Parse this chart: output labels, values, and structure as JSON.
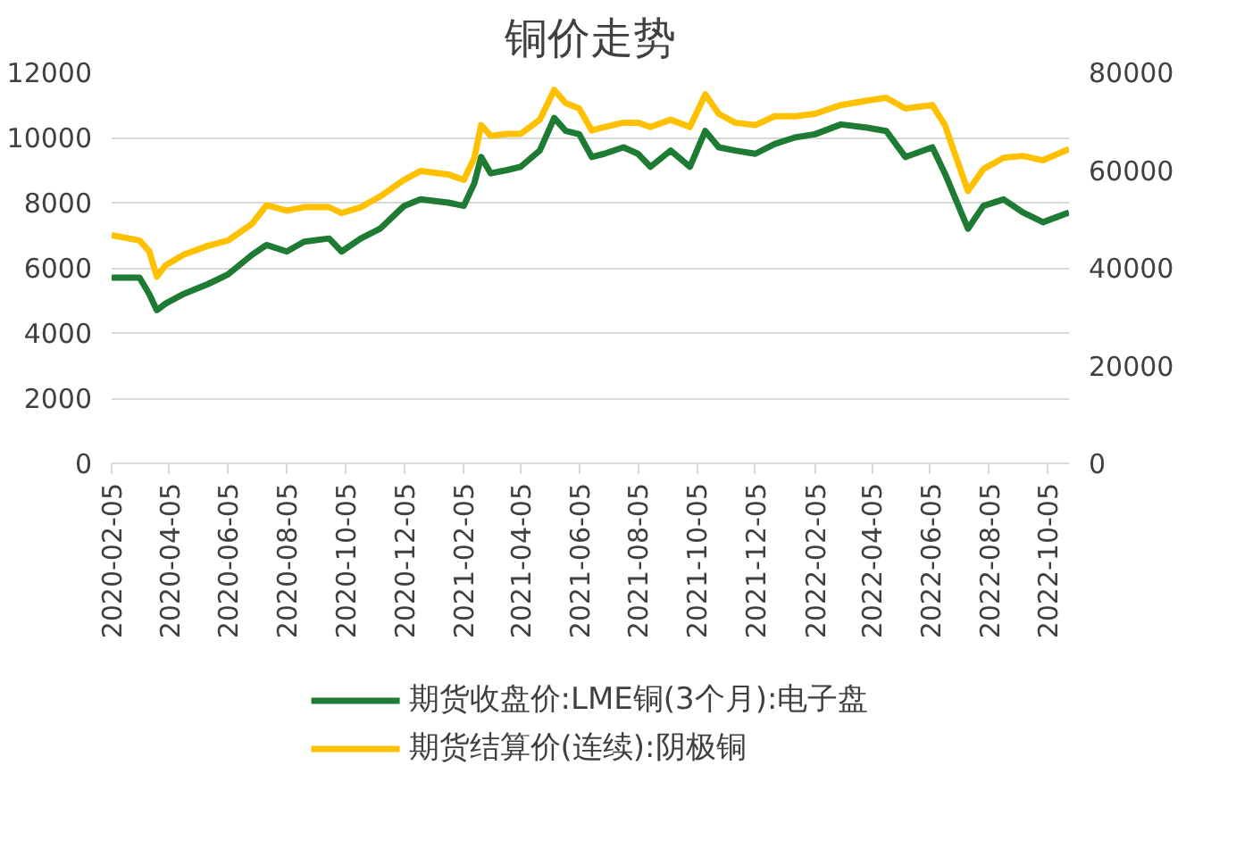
{
  "chart_data": {
    "type": "line",
    "title": "铜价走势",
    "x": [
      "2020-02-05",
      "2020-03-05",
      "2020-03-15",
      "2020-03-23",
      "2020-04-01",
      "2020-04-20",
      "2020-05-15",
      "2020-06-05",
      "2020-06-30",
      "2020-07-15",
      "2020-08-05",
      "2020-08-23",
      "2020-09-18",
      "2020-10-01",
      "2020-10-21",
      "2020-11-10",
      "2020-12-05",
      "2020-12-22",
      "2021-01-20",
      "2021-02-05",
      "2021-02-16",
      "2021-02-23",
      "2021-03-05",
      "2021-03-22",
      "2021-04-05",
      "2021-04-25",
      "2021-05-10",
      "2021-05-22",
      "2021-06-05",
      "2021-06-18",
      "2021-07-01",
      "2021-07-21",
      "2021-08-05",
      "2021-08-18",
      "2021-09-08",
      "2021-09-28",
      "2021-10-14",
      "2021-10-28",
      "2021-11-14",
      "2021-12-05",
      "2021-12-25",
      "2022-01-15",
      "2022-02-05",
      "2022-03-04",
      "2022-03-31",
      "2022-04-20",
      "2022-05-10",
      "2022-06-07",
      "2022-06-20",
      "2022-07-14",
      "2022-07-30",
      "2022-08-20",
      "2022-09-09",
      "2022-09-30",
      "2022-10-27"
    ],
    "series": [
      {
        "name": "期货收盘价:LME铜(3个月):电子盘",
        "color": "#1e7b34",
        "values": [
          5700,
          5700,
          5200,
          4700,
          4900,
          5200,
          5500,
          5800,
          6400,
          6700,
          6500,
          6800,
          6900,
          6500,
          6900,
          7200,
          7900,
          8100,
          8000,
          7900,
          8600,
          9400,
          8900,
          9000,
          9100,
          9600,
          10600,
          10200,
          10100,
          9400,
          9500,
          9700,
          9500,
          9100,
          9600,
          9100,
          10200,
          9700,
          9600,
          9500,
          9800,
          10000,
          10100,
          10400,
          10300,
          10200,
          9400,
          9700,
          8900,
          7200,
          7900,
          8100,
          7700,
          7400,
          7700
        ]
      },
      {
        "name": "期货结算价(连续):阴极铜",
        "color": "#ffc000",
        "axis": "y2",
        "values": [
          46700,
          45600,
          43400,
          38200,
          40500,
          42700,
          44500,
          45600,
          49000,
          52800,
          51700,
          52400,
          52400,
          51200,
          52400,
          54600,
          58000,
          59800,
          59100,
          58000,
          62500,
          69200,
          67000,
          67400,
          67400,
          70300,
          76400,
          73700,
          72600,
          68100,
          68800,
          69700,
          69700,
          68800,
          70300,
          68800,
          75500,
          71500,
          69700,
          69200,
          71000,
          71000,
          71500,
          73300,
          74200,
          74800,
          72600,
          73300,
          69200,
          55700,
          60200,
          62500,
          62900,
          62000,
          64300
        ]
      }
    ],
    "xlim": [
      "2020-02-05",
      "2022-10-27"
    ],
    "xticks": [
      "2020-02-05",
      "2020-04-05",
      "2020-06-05",
      "2020-08-05",
      "2020-10-05",
      "2020-12-05",
      "2021-02-05",
      "2021-04-05",
      "2021-06-05",
      "2021-08-05",
      "2021-10-05",
      "2021-12-05",
      "2022-02-05",
      "2022-04-05",
      "2022-06-05",
      "2022-08-05",
      "2022-10-05"
    ],
    "ylim": [
      0,
      12000
    ],
    "yticks": [
      0,
      2000,
      4000,
      6000,
      8000,
      10000,
      12000
    ],
    "y2lim": [
      0,
      80000
    ],
    "y2ticks": [
      0,
      20000,
      40000,
      60000,
      80000
    ],
    "grid": "y",
    "legend": "bottom",
    "marker": "none",
    "line_style": "solid"
  }
}
